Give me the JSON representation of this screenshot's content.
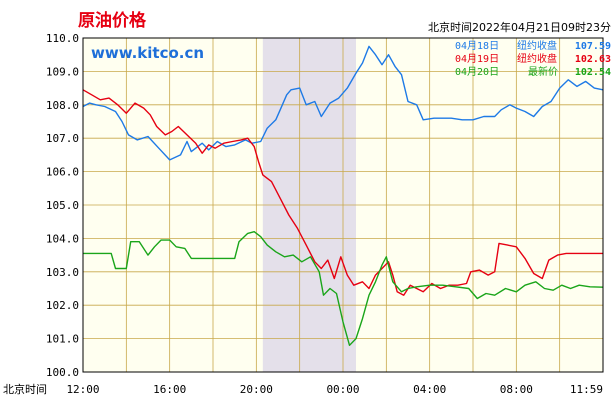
{
  "chart_data": {
    "type": "line",
    "title": "原油价格",
    "watermark": "www.kitco.cn",
    "timestamp": "北京时间2022年04月21日09时23分",
    "xlabel": "北京时间",
    "x_ticks": [
      "12:00",
      "16:00",
      "20:00",
      "00:00",
      "04:00",
      "08:00",
      "11:59"
    ],
    "y_ticks": [
      "110.0",
      "109.0",
      "108.0",
      "107.0",
      "106.0",
      "105.0",
      "104.0",
      "103.0",
      "102.0",
      "101.0",
      "100.0"
    ],
    "ylim": [
      100,
      110
    ],
    "x_range_hours": [
      0,
      24
    ],
    "shaded_region_hours": [
      8.3,
      12.6
    ],
    "grid": true,
    "legend_position": "top-right",
    "series": [
      {
        "name": "04月18日",
        "label": "纽约收盘",
        "value": "107.59",
        "color": "#1e7ae6",
        "points": [
          [
            0,
            107.95
          ],
          [
            0.3,
            108.05
          ],
          [
            0.6,
            108.0
          ],
          [
            1.0,
            107.95
          ],
          [
            1.5,
            107.8
          ],
          [
            1.8,
            107.5
          ],
          [
            2.1,
            107.1
          ],
          [
            2.5,
            106.95
          ],
          [
            3.0,
            107.05
          ],
          [
            3.5,
            106.7
          ],
          [
            4.0,
            106.35
          ],
          [
            4.5,
            106.5
          ],
          [
            4.8,
            106.9
          ],
          [
            5.0,
            106.6
          ],
          [
            5.5,
            106.85
          ],
          [
            5.8,
            106.65
          ],
          [
            6.2,
            106.9
          ],
          [
            6.6,
            106.75
          ],
          [
            7.0,
            106.8
          ],
          [
            7.5,
            106.95
          ],
          [
            7.8,
            106.85
          ],
          [
            8.2,
            106.9
          ],
          [
            8.5,
            107.3
          ],
          [
            8.9,
            107.55
          ],
          [
            9.1,
            107.85
          ],
          [
            9.4,
            108.3
          ],
          [
            9.6,
            108.45
          ],
          [
            10.0,
            108.5
          ],
          [
            10.3,
            108.0
          ],
          [
            10.7,
            108.1
          ],
          [
            11.0,
            107.65
          ],
          [
            11.4,
            108.05
          ],
          [
            11.8,
            108.2
          ],
          [
            12.2,
            108.5
          ],
          [
            12.6,
            108.95
          ],
          [
            12.9,
            109.25
          ],
          [
            13.2,
            109.75
          ],
          [
            13.5,
            109.5
          ],
          [
            13.8,
            109.2
          ],
          [
            14.1,
            109.5
          ],
          [
            14.4,
            109.15
          ],
          [
            14.7,
            108.9
          ],
          [
            15.0,
            108.1
          ],
          [
            15.4,
            108.0
          ],
          [
            15.7,
            107.55
          ],
          [
            16.2,
            107.6
          ],
          [
            16.6,
            107.6
          ],
          [
            17.0,
            107.6
          ],
          [
            17.5,
            107.55
          ],
          [
            18.0,
            107.55
          ],
          [
            18.5,
            107.65
          ],
          [
            19.0,
            107.65
          ],
          [
            19.3,
            107.85
          ],
          [
            19.7,
            108.0
          ],
          [
            20.0,
            107.9
          ],
          [
            20.4,
            107.8
          ],
          [
            20.8,
            107.65
          ],
          [
            21.2,
            107.95
          ],
          [
            21.6,
            108.1
          ],
          [
            22.0,
            108.5
          ],
          [
            22.4,
            108.75
          ],
          [
            22.8,
            108.55
          ],
          [
            23.2,
            108.7
          ],
          [
            23.6,
            108.5
          ],
          [
            24.0,
            108.45
          ]
        ]
      },
      {
        "name": "04月19日",
        "label": "纽约收盘",
        "value": "102.63",
        "color": "#e60012",
        "points": [
          [
            0,
            108.45
          ],
          [
            0.4,
            108.3
          ],
          [
            0.8,
            108.15
          ],
          [
            1.2,
            108.2
          ],
          [
            1.6,
            108.0
          ],
          [
            2.0,
            107.75
          ],
          [
            2.4,
            108.05
          ],
          [
            2.8,
            107.9
          ],
          [
            3.1,
            107.7
          ],
          [
            3.4,
            107.35
          ],
          [
            3.8,
            107.1
          ],
          [
            4.1,
            107.2
          ],
          [
            4.4,
            107.35
          ],
          [
            4.8,
            107.1
          ],
          [
            5.2,
            106.85
          ],
          [
            5.5,
            106.55
          ],
          [
            5.8,
            106.8
          ],
          [
            6.1,
            106.7
          ],
          [
            6.5,
            106.85
          ],
          [
            6.9,
            106.9
          ],
          [
            7.3,
            106.95
          ],
          [
            7.6,
            107.0
          ],
          [
            7.9,
            106.75
          ],
          [
            8.1,
            106.3
          ],
          [
            8.3,
            105.9
          ],
          [
            8.7,
            105.7
          ],
          [
            9.1,
            105.2
          ],
          [
            9.5,
            104.7
          ],
          [
            9.9,
            104.3
          ],
          [
            10.3,
            103.8
          ],
          [
            10.7,
            103.3
          ],
          [
            11.0,
            103.1
          ],
          [
            11.3,
            103.35
          ],
          [
            11.6,
            102.8
          ],
          [
            11.9,
            103.45
          ],
          [
            12.2,
            102.9
          ],
          [
            12.5,
            102.6
          ],
          [
            12.9,
            102.7
          ],
          [
            13.2,
            102.5
          ],
          [
            13.5,
            102.9
          ],
          [
            13.8,
            103.1
          ],
          [
            14.1,
            103.3
          ],
          [
            14.3,
            102.9
          ],
          [
            14.5,
            102.4
          ],
          [
            14.8,
            102.3
          ],
          [
            15.1,
            102.6
          ],
          [
            15.4,
            102.5
          ],
          [
            15.7,
            102.4
          ],
          [
            16.1,
            102.65
          ],
          [
            16.5,
            102.5
          ],
          [
            16.9,
            102.6
          ],
          [
            17.3,
            102.6
          ],
          [
            17.7,
            102.65
          ],
          [
            17.9,
            103.0
          ],
          [
            18.3,
            103.05
          ],
          [
            18.7,
            102.9
          ],
          [
            19.0,
            103.0
          ],
          [
            19.2,
            103.85
          ],
          [
            19.6,
            103.8
          ],
          [
            20.0,
            103.75
          ],
          [
            20.4,
            103.4
          ],
          [
            20.8,
            102.95
          ],
          [
            21.2,
            102.8
          ],
          [
            21.5,
            103.35
          ],
          [
            21.9,
            103.5
          ],
          [
            22.3,
            103.55
          ],
          [
            22.8,
            103.55
          ],
          [
            23.4,
            103.55
          ],
          [
            24.0,
            103.55
          ]
        ]
      },
      {
        "name": "04月20日",
        "label": "最新价",
        "value": "102.54",
        "color": "#1aa51a",
        "points": [
          [
            0,
            103.55
          ],
          [
            0.5,
            103.55
          ],
          [
            1.0,
            103.55
          ],
          [
            1.3,
            103.55
          ],
          [
            1.5,
            103.1
          ],
          [
            2.0,
            103.1
          ],
          [
            2.2,
            103.9
          ],
          [
            2.6,
            103.9
          ],
          [
            3.0,
            103.5
          ],
          [
            3.3,
            103.75
          ],
          [
            3.6,
            103.95
          ],
          [
            4.0,
            103.95
          ],
          [
            4.3,
            103.75
          ],
          [
            4.7,
            103.7
          ],
          [
            5.0,
            103.4
          ],
          [
            5.5,
            103.4
          ],
          [
            6.0,
            103.4
          ],
          [
            6.5,
            103.4
          ],
          [
            7.0,
            103.4
          ],
          [
            7.2,
            103.9
          ],
          [
            7.6,
            104.15
          ],
          [
            7.9,
            104.2
          ],
          [
            8.2,
            104.05
          ],
          [
            8.5,
            103.8
          ],
          [
            8.9,
            103.6
          ],
          [
            9.3,
            103.45
          ],
          [
            9.7,
            103.5
          ],
          [
            10.1,
            103.3
          ],
          [
            10.5,
            103.45
          ],
          [
            10.9,
            103.0
          ],
          [
            11.1,
            102.3
          ],
          [
            11.4,
            102.5
          ],
          [
            11.7,
            102.35
          ],
          [
            12.0,
            101.5
          ],
          [
            12.3,
            100.8
          ],
          [
            12.6,
            101.0
          ],
          [
            12.9,
            101.6
          ],
          [
            13.2,
            102.3
          ],
          [
            13.5,
            102.7
          ],
          [
            13.8,
            103.2
          ],
          [
            14.0,
            103.45
          ],
          [
            14.3,
            102.7
          ],
          [
            14.7,
            102.4
          ],
          [
            15.0,
            102.5
          ],
          [
            15.4,
            102.55
          ],
          [
            16.0,
            102.6
          ],
          [
            16.6,
            102.6
          ],
          [
            17.2,
            102.55
          ],
          [
            17.8,
            102.5
          ],
          [
            18.2,
            102.2
          ],
          [
            18.6,
            102.35
          ],
          [
            19.0,
            102.3
          ],
          [
            19.5,
            102.5
          ],
          [
            20.0,
            102.4
          ],
          [
            20.4,
            102.6
          ],
          [
            20.9,
            102.7
          ],
          [
            21.3,
            102.5
          ],
          [
            21.7,
            102.45
          ],
          [
            22.1,
            102.6
          ],
          [
            22.5,
            102.5
          ],
          [
            22.9,
            102.6
          ],
          [
            23.4,
            102.55
          ],
          [
            24.0,
            102.54
          ]
        ]
      }
    ]
  }
}
